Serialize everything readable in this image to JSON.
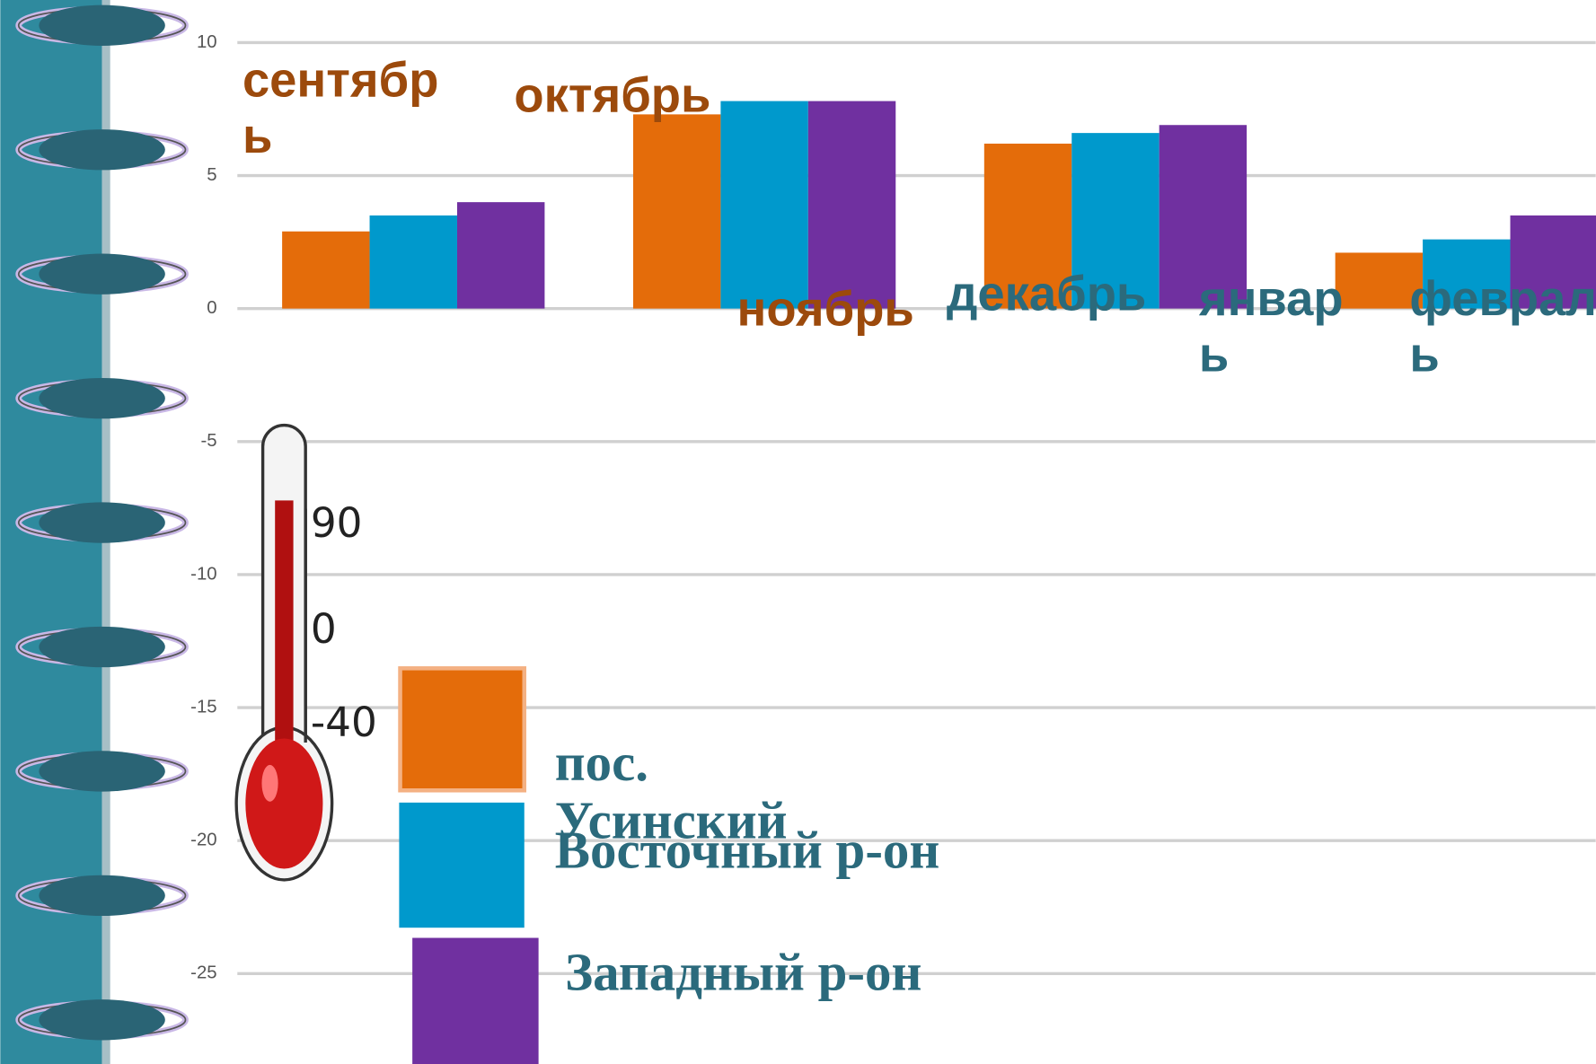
{
  "chart_data": {
    "type": "bar",
    "categories": [
      null,
      null,
      null,
      null
    ],
    "series": [
      {
        "name": "пос. Усинский",
        "color": "#e46c0a",
        "values": [
          2.9,
          7.3,
          6.2,
          2.1
        ]
      },
      {
        "name": "Восточный р-он",
        "color": "#0099cc",
        "values": [
          3.5,
          7.8,
          6.6,
          2.6
        ]
      },
      {
        "name": "Западный р-он",
        "color": "#7030a0",
        "values": [
          4.0,
          7.8,
          6.9,
          3.5
        ]
      }
    ],
    "ylim": [
      -28.4,
      11.6
    ],
    "yticks": [
      10,
      5,
      0,
      -5,
      -10,
      -15,
      -20,
      -25
    ],
    "grid": true,
    "annotations": [
      {
        "text": "сентябрь",
        "color": "#9c4a0c"
      },
      {
        "text": "октябрь",
        "color": "#9c4a0c"
      },
      {
        "text": "ноябрь",
        "color": "#9c4a0c"
      },
      {
        "text": "декабрь",
        "color": "#2b6a7c"
      },
      {
        "text": "январь",
        "color": "#2b6a7c"
      },
      {
        "text": "февраль",
        "color": "#2b6a7c"
      }
    ]
  },
  "thermometer": {
    "labels": [
      "90",
      "0",
      "-40"
    ]
  }
}
